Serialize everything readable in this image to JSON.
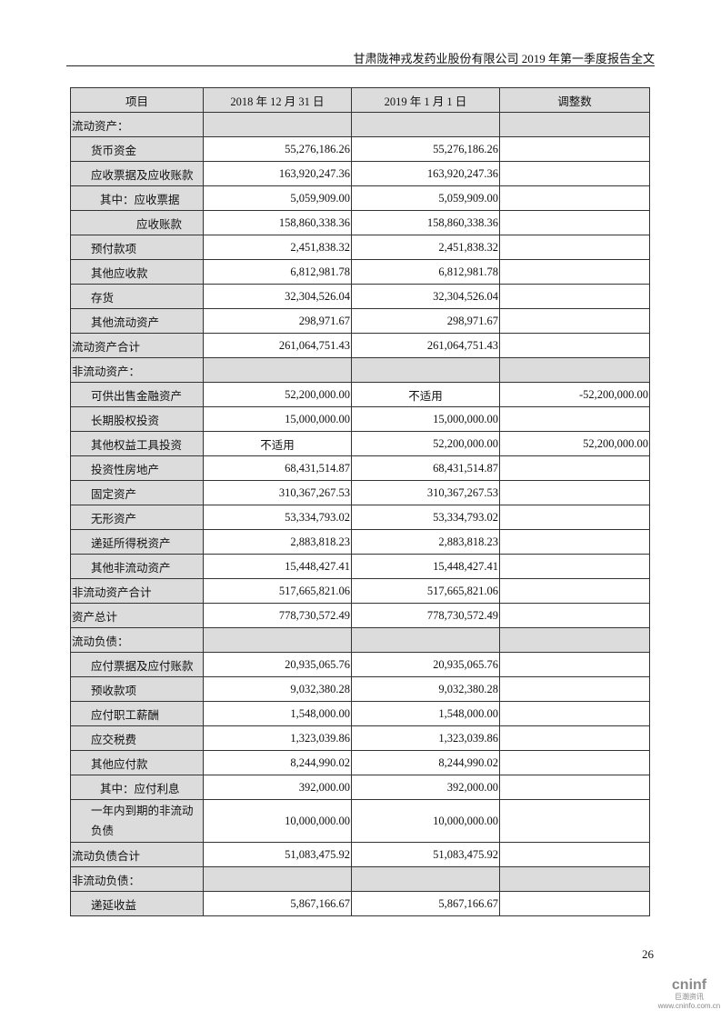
{
  "header": {
    "title": "甘肃陇神戎发药业股份有限公司 2019 年第一季度报告全文"
  },
  "table": {
    "columns": [
      "项目",
      "2018 年 12 月 31 日",
      "2019 年 1 月 1 日",
      "调整数"
    ],
    "rows": [
      {
        "label": "流动资产：",
        "type": "section",
        "v": [
          "",
          "",
          ""
        ]
      },
      {
        "label": "货币资金",
        "indent": 1,
        "v": [
          "55,276,186.26",
          "55,276,186.26",
          ""
        ]
      },
      {
        "label": "应收票据及应收账款",
        "indent": 1,
        "v": [
          "163,920,247.36",
          "163,920,247.36",
          ""
        ]
      },
      {
        "label": "其中：应收票据",
        "indent": 2,
        "v": [
          "5,059,909.00",
          "5,059,909.00",
          ""
        ]
      },
      {
        "label": "应收账款",
        "indent": 3,
        "v": [
          "158,860,338.36",
          "158,860,338.36",
          ""
        ]
      },
      {
        "label": "预付款项",
        "indent": 1,
        "v": [
          "2,451,838.32",
          "2,451,838.32",
          ""
        ]
      },
      {
        "label": "其他应收款",
        "indent": 1,
        "v": [
          "6,812,981.78",
          "6,812,981.78",
          ""
        ]
      },
      {
        "label": "存货",
        "indent": 1,
        "v": [
          "32,304,526.04",
          "32,304,526.04",
          ""
        ]
      },
      {
        "label": "其他流动资产",
        "indent": 1,
        "v": [
          "298,971.67",
          "298,971.67",
          ""
        ]
      },
      {
        "label": "流动资产合计",
        "indent": 0,
        "v": [
          "261,064,751.43",
          "261,064,751.43",
          ""
        ]
      },
      {
        "label": "非流动资产：",
        "type": "section",
        "v": [
          "",
          "",
          ""
        ]
      },
      {
        "label": "可供出售金融资产",
        "indent": 1,
        "v": [
          "52,200,000.00",
          "不适用",
          "-52,200,000.00"
        ]
      },
      {
        "label": "长期股权投资",
        "indent": 1,
        "v": [
          "15,000,000.00",
          "15,000,000.00",
          ""
        ]
      },
      {
        "label": "其他权益工具投资",
        "indent": 1,
        "v": [
          "不适用",
          "52,200,000.00",
          "52,200,000.00"
        ]
      },
      {
        "label": "投资性房地产",
        "indent": 1,
        "v": [
          "68,431,514.87",
          "68,431,514.87",
          ""
        ]
      },
      {
        "label": "固定资产",
        "indent": 1,
        "v": [
          "310,367,267.53",
          "310,367,267.53",
          ""
        ]
      },
      {
        "label": "无形资产",
        "indent": 1,
        "v": [
          "53,334,793.02",
          "53,334,793.02",
          ""
        ]
      },
      {
        "label": "递延所得税资产",
        "indent": 1,
        "v": [
          "2,883,818.23",
          "2,883,818.23",
          ""
        ]
      },
      {
        "label": "其他非流动资产",
        "indent": 1,
        "v": [
          "15,448,427.41",
          "15,448,427.41",
          ""
        ]
      },
      {
        "label": "非流动资产合计",
        "indent": 0,
        "v": [
          "517,665,821.06",
          "517,665,821.06",
          ""
        ]
      },
      {
        "label": "资产总计",
        "indent": 0,
        "v": [
          "778,730,572.49",
          "778,730,572.49",
          ""
        ]
      },
      {
        "label": "流动负债：",
        "type": "section",
        "v": [
          "",
          "",
          ""
        ]
      },
      {
        "label": "应付票据及应付账款",
        "indent": 1,
        "v": [
          "20,935,065.76",
          "20,935,065.76",
          ""
        ]
      },
      {
        "label": "预收款项",
        "indent": 1,
        "v": [
          "9,032,380.28",
          "9,032,380.28",
          ""
        ]
      },
      {
        "label": "应付职工薪酬",
        "indent": 1,
        "v": [
          "1,548,000.00",
          "1,548,000.00",
          ""
        ]
      },
      {
        "label": "应交税费",
        "indent": 1,
        "v": [
          "1,323,039.86",
          "1,323,039.86",
          ""
        ]
      },
      {
        "label": "其他应付款",
        "indent": 1,
        "v": [
          "8,244,990.02",
          "8,244,990.02",
          ""
        ]
      },
      {
        "label": "其中：应付利息",
        "indent": 2,
        "v": [
          "392,000.00",
          "392,000.00",
          ""
        ]
      },
      {
        "label": "一年内到期的非流动负债",
        "indent": 1,
        "double": true,
        "v": [
          "10,000,000.00",
          "10,000,000.00",
          ""
        ]
      },
      {
        "label": "流动负债合计",
        "indent": 0,
        "v": [
          "51,083,475.92",
          "51,083,475.92",
          ""
        ]
      },
      {
        "label": "非流动负债：",
        "type": "section",
        "v": [
          "",
          "",
          ""
        ]
      },
      {
        "label": "递延收益",
        "indent": 1,
        "v": [
          "5,867,166.67",
          "5,867,166.67",
          ""
        ]
      }
    ]
  },
  "footer": {
    "page_number": "26",
    "logo_brand": "cninf",
    "logo_cn": "巨潮资讯",
    "logo_url": "www.cninfo.com.cn"
  }
}
